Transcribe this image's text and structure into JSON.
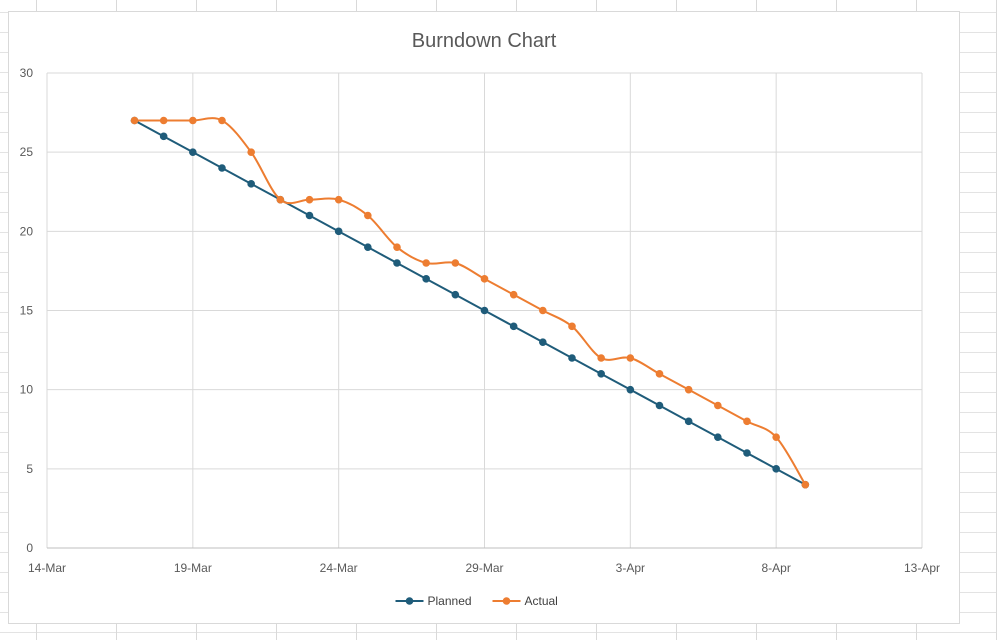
{
  "chart_data": {
    "type": "line",
    "title": "Burndown Chart",
    "xlabel": "",
    "ylabel": "",
    "ylim": [
      0,
      30
    ],
    "yticks": [
      0,
      5,
      10,
      15,
      20,
      25,
      30
    ],
    "xlim": [
      "2024-03-14",
      "2024-04-13"
    ],
    "xticks": [
      {
        "date": "2024-03-14",
        "label": "14-Mar"
      },
      {
        "date": "2024-03-19",
        "label": "19-Mar"
      },
      {
        "date": "2024-03-24",
        "label": "24-Mar"
      },
      {
        "date": "2024-03-29",
        "label": "29-Mar"
      },
      {
        "date": "2024-04-03",
        "label": "3-Apr"
      },
      {
        "date": "2024-04-08",
        "label": "8-Apr"
      },
      {
        "date": "2024-04-13",
        "label": "13-Apr"
      }
    ],
    "grid": true,
    "legend_position": "bottom",
    "x": [
      "2024-03-17",
      "2024-03-18",
      "2024-03-19",
      "2024-03-20",
      "2024-03-21",
      "2024-03-22",
      "2024-03-23",
      "2024-03-24",
      "2024-03-25",
      "2024-03-26",
      "2024-03-27",
      "2024-03-28",
      "2024-03-29",
      "2024-03-30",
      "2024-03-31",
      "2024-04-01",
      "2024-04-02",
      "2024-04-03",
      "2024-04-04",
      "2024-04-05",
      "2024-04-06",
      "2024-04-07",
      "2024-04-08",
      "2024-04-09"
    ],
    "series": [
      {
        "name": "Planned",
        "color": "#1f5c7a",
        "smooth": false,
        "values": [
          27,
          26,
          25,
          24,
          23,
          22,
          21,
          20,
          19,
          18,
          17,
          16,
          15,
          14,
          13,
          12,
          11,
          10,
          9,
          8,
          7,
          6,
          5,
          4
        ]
      },
      {
        "name": "Actual",
        "color": "#ed7d31",
        "smooth": true,
        "values": [
          27,
          27,
          27,
          27,
          25,
          22,
          22,
          22,
          21,
          19,
          18,
          18,
          17,
          16,
          15,
          14,
          12,
          12,
          11,
          10,
          9,
          8,
          7,
          4
        ]
      }
    ]
  }
}
